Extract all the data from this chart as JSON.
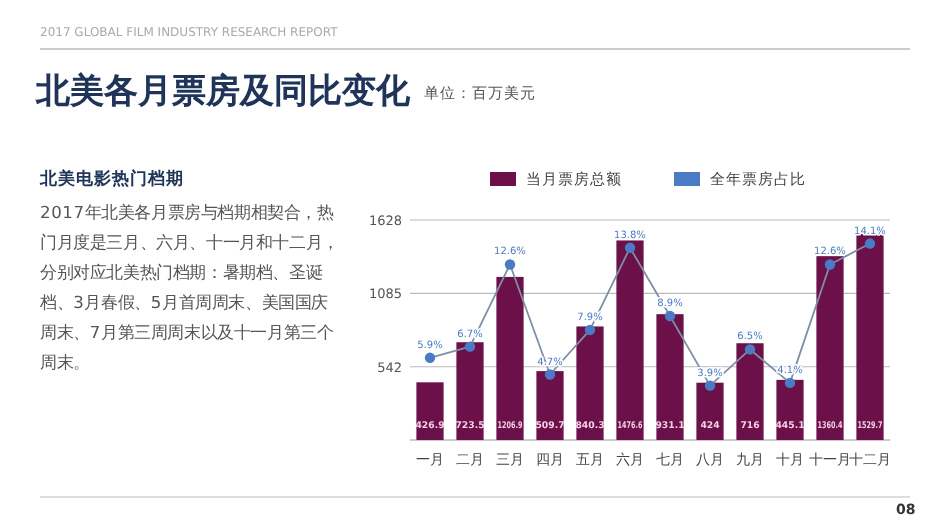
{
  "chart_data": {
    "type": "bar",
    "title": "北美各月票房及同比变化",
    "subtitle": "单位：百万美元",
    "annotations": [
      "2017 GLOBAL FILM INDUSTRY RESEARCH REPORT",
      "北美电影热门档期",
      "2017年北美各月票房与档期相契合，热门月度是三月、六月、十一月和十二月，分别对应北美热门档期：暑期档、圣诞档、3月春假、5月首周周末、美国国庆周末、7月第三周周末以及十一月第三个周末。",
      "08"
    ],
    "categories": [
      "一月",
      "二月",
      "三月",
      "四月",
      "五月",
      "六月",
      "七月",
      "八月",
      "九月",
      "十月",
      "十一月",
      "十二月"
    ],
    "series": [
      {
        "name": "当月票房总额",
        "color": "#6b1048",
        "values": [
          426.9,
          723.5,
          1206.9,
          509.7,
          840.3,
          1476.6,
          931.1,
          424,
          716.0,
          445.1,
          1360.4,
          1529.7
        ]
      },
      {
        "name": "全年票房占比",
        "type": "line",
        "axis": "y2",
        "color": "#4a7bc4",
        "marker": "circle",
        "value_labels": [
          "5.9%",
          "6.7%",
          "12.6%",
          "4.7%",
          "7.9%",
          "13.8%",
          "8.9%",
          "3.9%",
          "6.5%",
          "4.1%",
          "12.6%",
          "14.1%"
        ],
        "values": [
          5.9,
          6.7,
          12.6,
          4.7,
          7.9,
          13.8,
          8.9,
          3.9,
          6.5,
          4.1,
          12.6,
          14.1
        ]
      }
    ],
    "data_labels": true,
    "ylim": [
      0,
      1628
    ],
    "yticks": [
      542,
      1085,
      1628
    ],
    "grid": "y",
    "legend": "top",
    "tick_labels": "y"
  }
}
